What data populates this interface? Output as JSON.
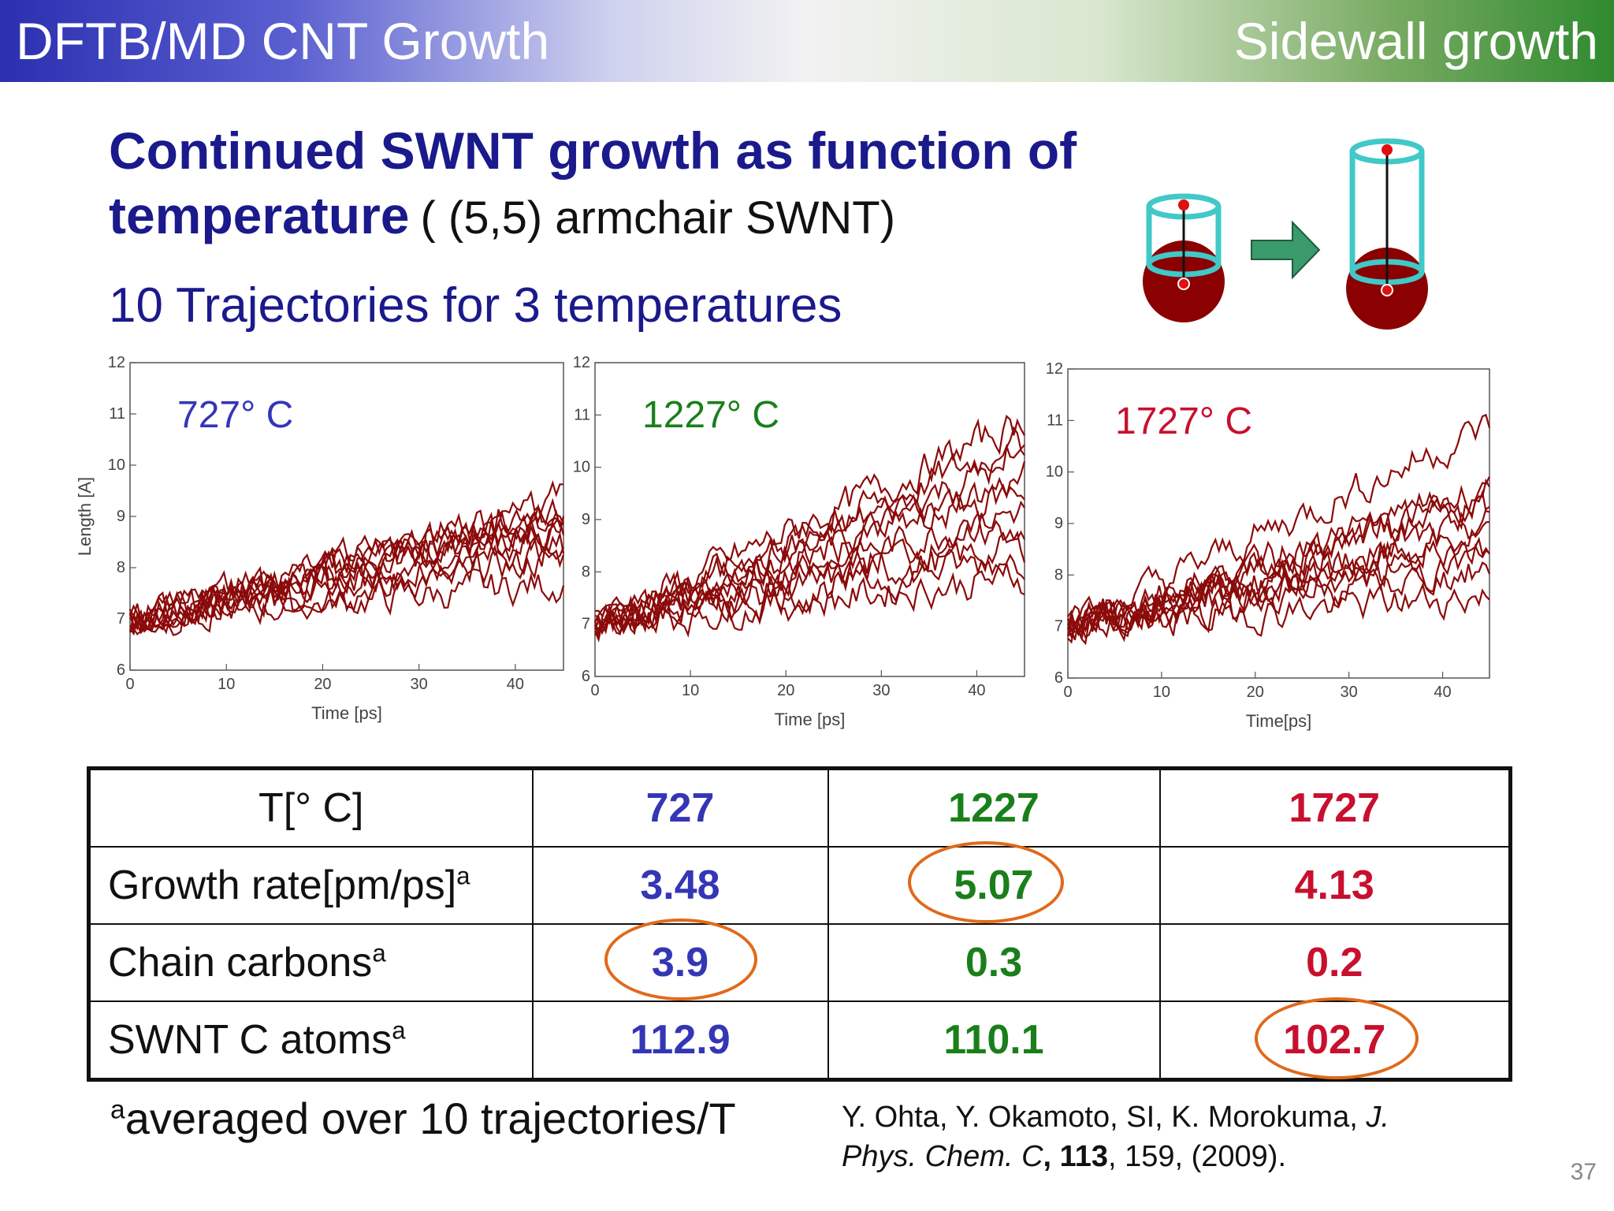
{
  "header": {
    "left": "DFTB/MD CNT Growth",
    "right": "Sidewall growth"
  },
  "title": {
    "main": "Continued SWNT growth as function of temperature",
    "sub": "( (5,5) armchair SWNT)"
  },
  "subtitle": "10 Trajectories for 3 temperatures",
  "schematic": {
    "colors": {
      "tube": "#41c8c8",
      "particle": "#8b0000",
      "point": "#e01010",
      "arrow": "#3a9a6a"
    }
  },
  "chart_data": [
    {
      "type": "line",
      "label": "727°  C",
      "label_color": "#3436b6",
      "ylabel": "Length [A]",
      "xlabel": "Time [ps]",
      "xlim": [
        0,
        45
      ],
      "ylim": [
        6,
        12
      ],
      "xticks": [
        "0",
        "10",
        "20",
        "30",
        "40"
      ],
      "yticks": [
        "6",
        "7",
        "8",
        "9",
        "10",
        "11",
        "12"
      ],
      "trajectories": 10,
      "start": 7.0,
      "end_values": [
        8.9,
        9.1,
        8.6,
        9.4,
        8.2,
        9.0,
        7.7,
        8.8,
        9.2,
        8.4
      ],
      "line_color": "#8b0a0a"
    },
    {
      "type": "line",
      "label": "1227°  C",
      "label_color": "#1a7f1a",
      "ylabel": "",
      "xlabel": "Time [ps]",
      "xlim": [
        0,
        45
      ],
      "ylim": [
        6,
        12
      ],
      "xticks": [
        "0",
        "10",
        "20",
        "30",
        "40"
      ],
      "yticks": [
        "6",
        "7",
        "8",
        "9",
        "10",
        "11",
        "12"
      ],
      "trajectories": 10,
      "start": 7.0,
      "end_values": [
        10.5,
        9.8,
        8.5,
        9.2,
        7.9,
        10.9,
        9.6,
        8.9,
        10.2,
        8.3
      ],
      "line_color": "#8b0a0a"
    },
    {
      "type": "line",
      "label": "1727°  C",
      "label_color": "#c8102e",
      "ylabel": "",
      "xlabel": "Time[ps]",
      "xlim": [
        0,
        45
      ],
      "ylim": [
        6,
        12
      ],
      "xticks": [
        "0",
        "10",
        "20",
        "30",
        "40"
      ],
      "yticks": [
        "6",
        "7",
        "8",
        "9",
        "10",
        "11",
        "12"
      ],
      "trajectories": 10,
      "start": 7.0,
      "end_values": [
        10.9,
        9.4,
        8.6,
        9.0,
        8.1,
        9.7,
        8.4,
        9.5,
        8.8,
        7.6
      ],
      "line_color": "#8b0a0a"
    }
  ],
  "table": {
    "header": [
      "T[°  C]",
      "727",
      "1227",
      "1727"
    ],
    "rows": [
      {
        "label": "Growth rate[pm/ps]",
        "sup": "a",
        "values": [
          "3.48",
          "5.07",
          "4.13"
        ]
      },
      {
        "label": "Chain carbons",
        "sup": "a",
        "values": [
          "3.9",
          "0.3",
          "0.2"
        ]
      },
      {
        "label": "SWNT C atoms",
        "sup": "a",
        "values": [
          "112.9",
          "110.1",
          "102.7"
        ]
      }
    ]
  },
  "footnote": {
    "sup": "a",
    "text": "averaged over 10 trajectories/T"
  },
  "reference": {
    "authors": "Y. Ohta, Y. Okamoto, SI, K. Morokuma,",
    "journal": "J. Phys. Chem. C",
    "volume": "113",
    "rest": ", 159, (2009)."
  },
  "page_number": "37"
}
